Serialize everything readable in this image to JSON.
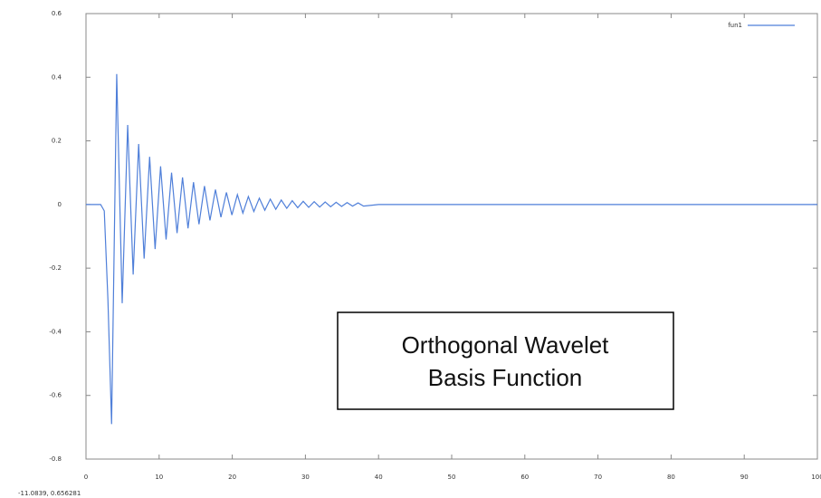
{
  "chart_data": {
    "type": "line",
    "series": [
      {
        "name": "fun1",
        "color": "#4f7fd9",
        "x": [
          0,
          1,
          2,
          2.5,
          3,
          3.5,
          4.2,
          4.95,
          5.7,
          6.45,
          7.2,
          7.95,
          8.7,
          9.45,
          10.2,
          10.95,
          11.7,
          12.45,
          13.2,
          13.95,
          14.7,
          15.45,
          16.2,
          16.95,
          17.7,
          18.45,
          19.2,
          19.95,
          20.7,
          21.45,
          22.2,
          22.95,
          23.7,
          24.45,
          25.2,
          25.95,
          26.7,
          27.45,
          28.2,
          28.95,
          29.7,
          30.45,
          31.2,
          31.95,
          32.7,
          33.45,
          34.2,
          34.95,
          35.7,
          36.45,
          37.2,
          37.95,
          40,
          50,
          60,
          70,
          80,
          90,
          100
        ],
        "values": [
          0,
          0,
          0,
          -0.02,
          -0.3,
          -0.69,
          0.41,
          -0.31,
          0.25,
          -0.22,
          0.19,
          -0.17,
          0.15,
          -0.14,
          0.12,
          -0.11,
          0.1,
          -0.09,
          0.085,
          -0.075,
          0.07,
          -0.062,
          0.058,
          -0.05,
          0.047,
          -0.04,
          0.038,
          -0.033,
          0.031,
          -0.027,
          0.025,
          -0.022,
          0.02,
          -0.018,
          0.017,
          -0.015,
          0.014,
          -0.012,
          0.012,
          -0.01,
          0.01,
          -0.009,
          0.009,
          -0.008,
          0.008,
          -0.007,
          0.007,
          -0.006,
          0.006,
          -0.005,
          0.005,
          -0.005,
          0,
          0,
          0,
          0,
          0,
          0,
          0
        ]
      }
    ],
    "xlim": [
      0,
      100
    ],
    "xticks": [
      0,
      10,
      20,
      30,
      40,
      50,
      60,
      70,
      80,
      90,
      100
    ],
    "ylim": [
      -0.8,
      0.6
    ],
    "yticks": [
      -0.8,
      -0.6,
      -0.4,
      -0.2,
      0,
      0.2,
      0.4,
      0.6
    ],
    "annotation": [
      "Orthogonal Wavelet",
      "Basis Function"
    ],
    "status": "-11.0839,  0.656281",
    "legend": "top-right"
  }
}
